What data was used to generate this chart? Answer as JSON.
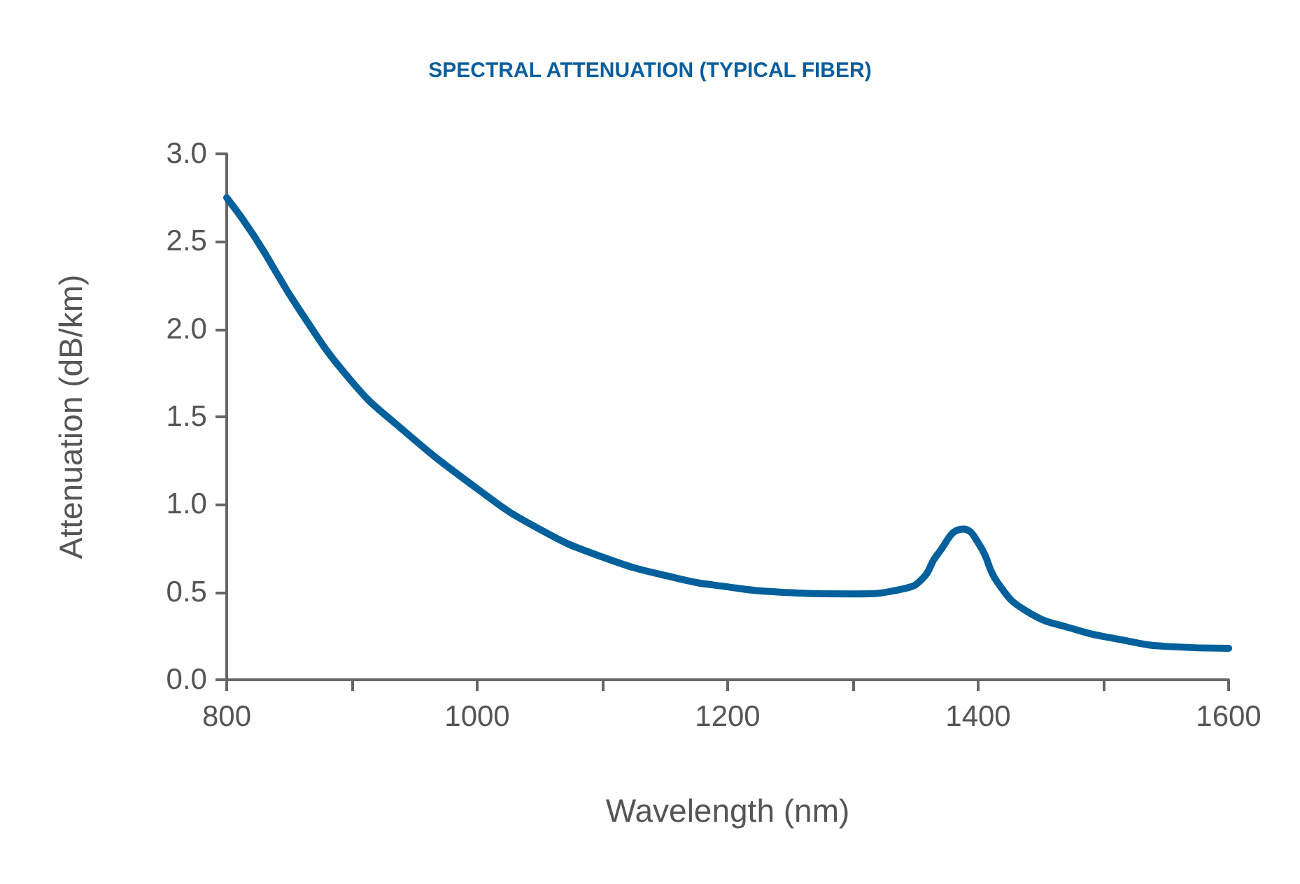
{
  "chart_data": {
    "type": "line",
    "title": "SPECTRAL ATTENUATION (TYPICAL FIBER)",
    "xlabel": "Wavelength (nm)",
    "ylabel": "Attenuation (dB/km)",
    "x": [
      800,
      822,
      859,
      900,
      935,
      1000,
      1047,
      1100,
      1159,
      1200,
      1242,
      1300,
      1341,
      1356,
      1367,
      1388,
      1401,
      1416,
      1439,
      1476,
      1513,
      1551,
      1600
    ],
    "series": [
      {
        "color": "#00609c",
        "values": [
          2.75,
          2.53,
          2.1,
          1.7,
          1.46,
          1.09,
          0.87,
          0.7,
          0.58,
          0.53,
          0.5,
          0.49,
          0.52,
          0.58,
          0.71,
          0.86,
          0.77,
          0.55,
          0.39,
          0.29,
          0.23,
          0.19,
          0.18
        ]
      }
    ],
    "xlim": [
      800,
      1600
    ],
    "xticks": [
      800,
      {
        "value": 900,
        "label": null
      },
      1000,
      {
        "value": 1100,
        "label": null
      },
      1200,
      {
        "value": 1300,
        "label": null
      },
      1400,
      {
        "value": 1500,
        "label": null
      },
      1600
    ],
    "ylim": [
      0,
      3
    ],
    "yticks": [
      {
        "value": 0,
        "label": "0.0"
      },
      {
        "value": 0.5,
        "label": "0.5"
      },
      {
        "value": 1,
        "label": "1.0"
      },
      {
        "value": 1.5,
        "label": "1.5"
      },
      {
        "value": 2,
        "label": "2.0"
      },
      {
        "value": 2.5,
        "label": "2.5"
      },
      {
        "value": 3,
        "label": "3.0"
      }
    ],
    "grid": false,
    "marker": "none",
    "line_style": "solid"
  }
}
